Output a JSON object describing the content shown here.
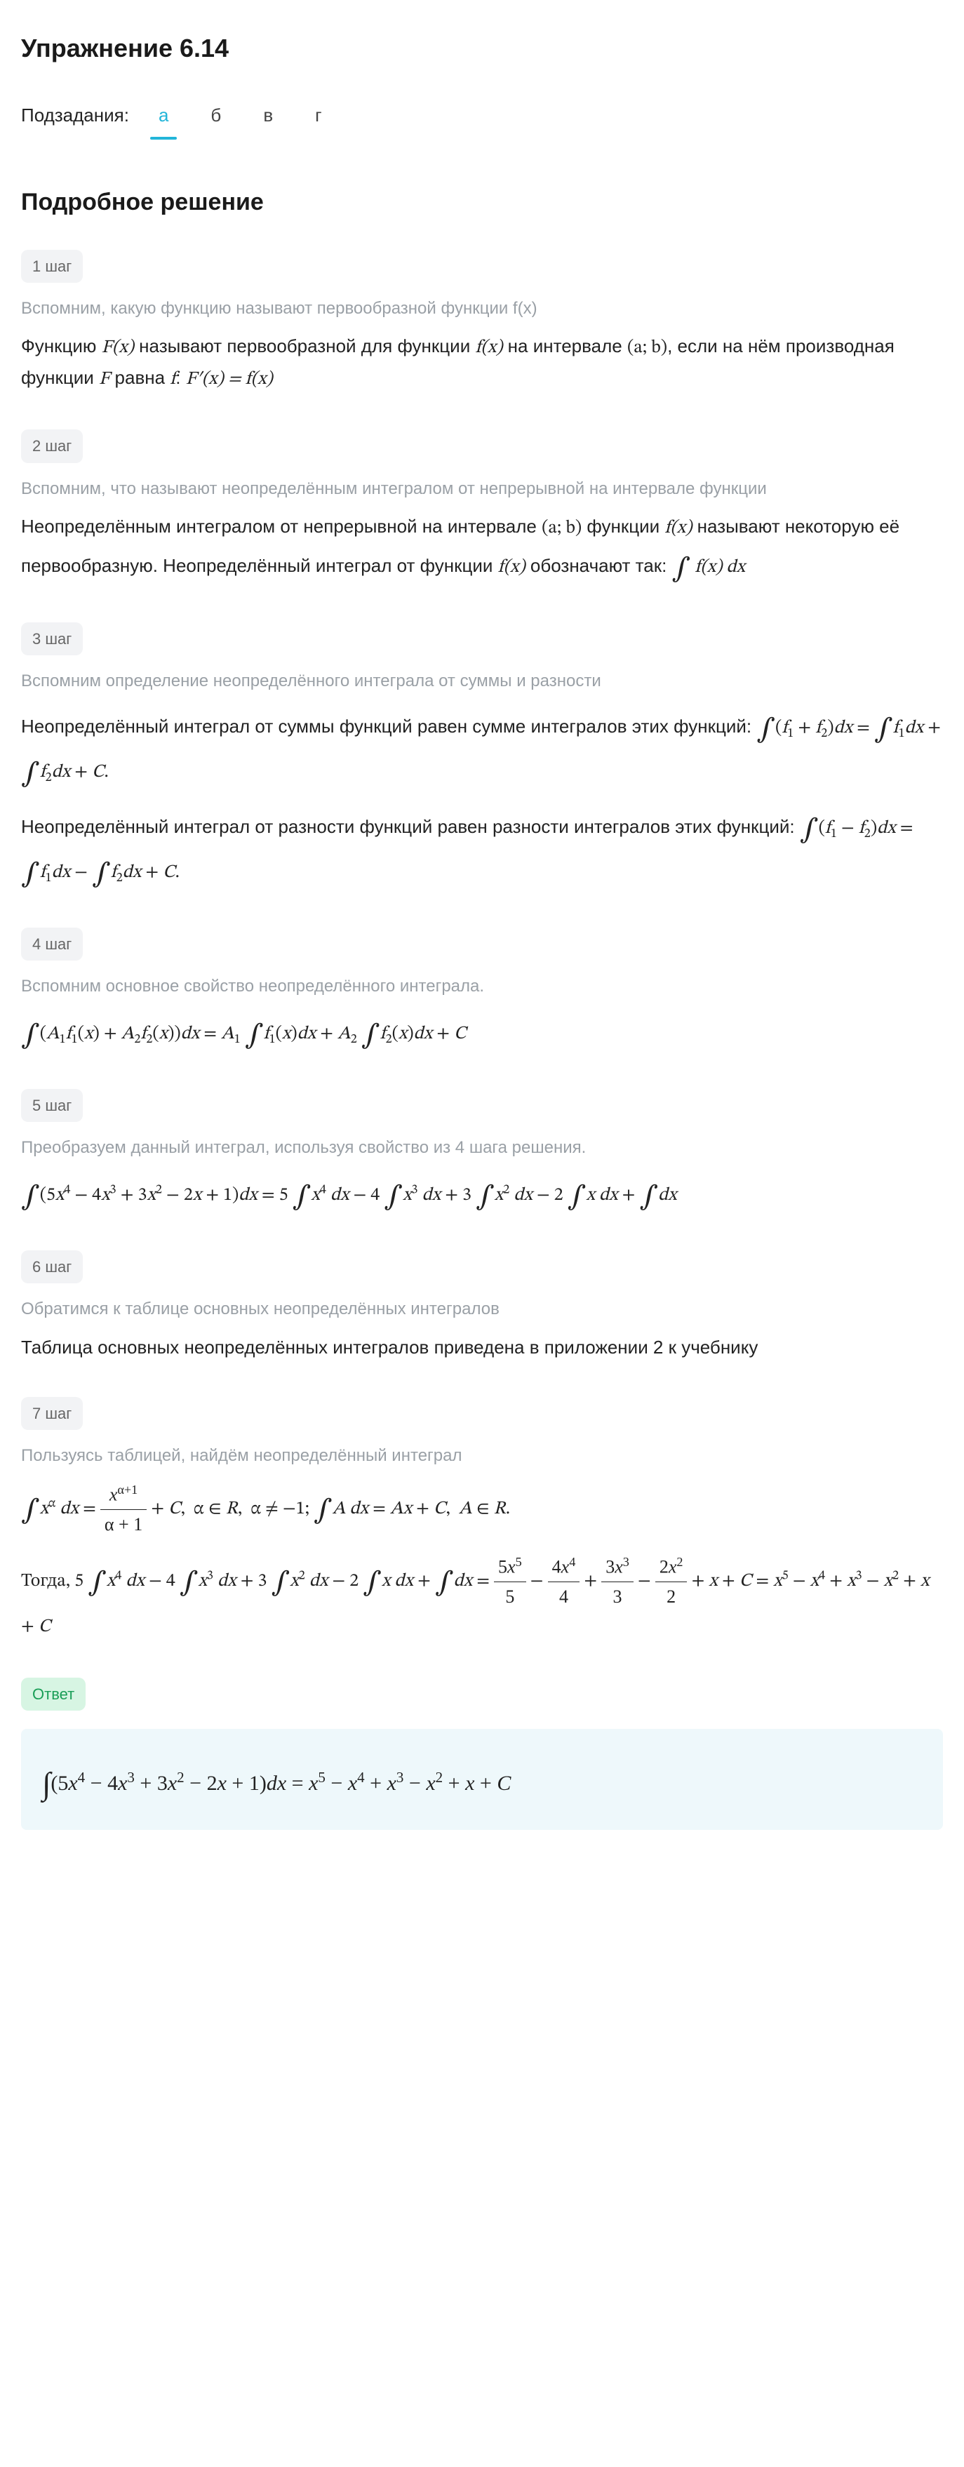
{
  "title": "Упражнение 6.14",
  "subtasks": {
    "label": "Подзадания:",
    "tabs": [
      "а",
      "б",
      "в",
      "г"
    ],
    "active_index": 0,
    "active_color": "#22b5d9"
  },
  "section_heading": "Подробное решение",
  "colors": {
    "badge_bg": "#f2f3f5",
    "badge_fg": "#666666",
    "hint_fg": "#9aa0a6",
    "text": "#222222",
    "answer_badge_bg": "#d7f5e3",
    "answer_badge_fg": "#1a9e57",
    "answer_box_bg": "#eef8fb"
  },
  "steps": [
    {
      "badge": "1 шаг",
      "hint": "Вспомним, какую функцию называют первообразной функции f(x)",
      "body_html": "Функцию <span class='math ital'>F(x)</span> называют первообразной для функции <span class='math ital'>f(x)</span> на интервале <span class='math'>(a; b)</span>, если на нём производная функции <span class='math ital'>F</span> равна <span class='math ital'>f</span>: <span class='math ital'>F′(x) = f(x)</span>"
    },
    {
      "badge": "2 шаг",
      "hint": "Вспомним, что называют неопределённым интегралом от непрерывной на интервале функции",
      "body_html": "Неопределённым интегралом от непрерывной на интервале <span class='math'>(a; b)</span> функции <span class='math ital'>f(x)</span> называют некоторую её первообразную. Неопределённый интеграл от функции <span class='math ital'>f(x)</span> обозначают так: <span class='math'><span class='int'>∫</span> <span class='ital'>f(x)&nbsp;dx</span></span>"
    },
    {
      "badge": "3 шаг",
      "hint": "Вспомним определение неопределённого интеграла от суммы и разности",
      "body_html": "<div class='para'>Неопределённый интеграл от суммы функций равен сумме интегралов этих функций: <span class='math'><span class='int'>∫</span>(<span class='ital'>f</span><sub>1</sub> + <span class='ital'>f</span><sub>2</sub>)<span class='ital'>dx</span> = <span class='int'>∫</span><span class='ital'>f</span><sub>1</sub><span class='ital'>dx</span> + <span class='int'>∫</span><span class='ital'>f</span><sub>2</sub><span class='ital'>dx</span> + <span class='ital'>C</span>.</span></div><div class='para'>Неопределённый интеграл от разности функций равен разности интегралов этих функций: <span class='math'><span class='int'>∫</span>(<span class='ital'>f</span><sub>1</sub> − <span class='ital'>f</span><sub>2</sub>)<span class='ital'>dx</span> = <span class='int'>∫</span><span class='ital'>f</span><sub>1</sub><span class='ital'>dx</span> − <span class='int'>∫</span><span class='ital'>f</span><sub>2</sub><span class='ital'>dx</span> + <span class='ital'>C</span>.</span></div>"
    },
    {
      "badge": "4 шаг",
      "hint": "Вспомним основное свойство неопределённого интеграла.",
      "body_html": "<span class='math'><span class='int'>∫</span>(<span class='ital'>A</span><sub>1</sub><span class='ital'>f</span><sub>1</sub>(<span class='ital'>x</span>) + <span class='ital'>A</span><sub>2</sub><span class='ital'>f</span><sub>2</sub>(<span class='ital'>x</span>))<span class='ital'>dx</span> = <span class='ital'>A</span><sub>1</sub> <span class='int'>∫</span><span class='ital'>f</span><sub>1</sub>(<span class='ital'>x</span>)<span class='ital'>dx</span> + <span class='ital'>A</span><sub>2</sub> <span class='int'>∫</span><span class='ital'>f</span><sub>2</sub>(<span class='ital'>x</span>)<span class='ital'>dx</span> + <span class='ital'>C</span></span>"
    },
    {
      "badge": "5 шаг",
      "hint": "Преобразуем данный интеграл, используя свойство из 4 шага решения.",
      "body_html": "<span class='math'><span class='int'>∫</span>(5<span class='ital'>x</span><sup>4</sup> − 4<span class='ital'>x</span><sup>3</sup> + 3<span class='ital'>x</span><sup>2</sup> − 2<span class='ital'>x</span> + 1)<span class='ital'>dx</span> = 5 <span class='int'>∫</span><span class='ital'>x</span><sup>4</sup>&nbsp;<span class='ital'>dx</span> − 4 <span class='int'>∫</span><span class='ital'>x</span><sup>3</sup>&nbsp;<span class='ital'>dx</span> + 3 <span class='int'>∫</span><span class='ital'>x</span><sup>2</sup>&nbsp;<span class='ital'>dx</span> − 2 <span class='int'>∫</span><span class='ital'>x&nbsp;dx</span> + <span class='int'>∫</span><span class='ital'>dx</span></span>"
    },
    {
      "badge": "6 шаг",
      "hint": "Обратимся к таблице основных неопределённых интегралов",
      "body_html": "Таблица основных неопределённых интегралов приведена в приложении 2 к учебнику"
    },
    {
      "badge": "7 шаг",
      "hint": "Пользуясь таблицей, найдём неопределённый интеграл",
      "body_html": "<div class='para'><span class='math'><span class='int'>∫</span><span class='ital'>x</span><sup>α</sup>&nbsp;<span class='ital'>dx</span> = <span class='frac'><span class='num'><span class='ital'>x</span><sup>α+1</sup></span><span class='den'>α + 1</span></span> + <span class='ital'>C</span>,&nbsp; α ∈ <span class='ital'>R</span>,&nbsp; α ≠ −1; <span class='int'>∫</span><span class='ital'>A&nbsp;dx</span> = <span class='ital'>Ax</span> + <span class='ital'>C</span>,&nbsp; <span class='ital'>A</span> ∈ <span class='ital'>R</span>.</span></div><div class='para'><span class='math'>Тогда, 5 <span class='int'>∫</span><span class='ital'>x</span><sup>4</sup>&nbsp;<span class='ital'>dx</span> − 4 <span class='int'>∫</span><span class='ital'>x</span><sup>3</sup>&nbsp;<span class='ital'>dx</span> + 3 <span class='int'>∫</span><span class='ital'>x</span><sup>2</sup>&nbsp;<span class='ital'>dx</span> − 2 <span class='int'>∫</span><span class='ital'>x&nbsp;dx</span> + <span class='int'>∫</span><span class='ital'>dx</span> = <span class='frac'><span class='num'>5<span class='ital'>x</span><sup>5</sup></span><span class='den'>5</span></span> − <span class='frac'><span class='num'>4<span class='ital'>x</span><sup>4</sup></span><span class='den'>4</span></span> + <span class='frac'><span class='num'>3<span class='ital'>x</span><sup>3</sup></span><span class='den'>3</span></span> − <span class='frac'><span class='num'>2<span class='ital'>x</span><sup>2</sup></span><span class='den'>2</span></span> + <span class='ital'>x</span> + <span class='ital'>C</span> = <span class='ital'>x</span><sup>5</sup> − <span class='ital'>x</span><sup>4</sup> + <span class='ital'>x</span><sup>3</sup> − <span class='ital'>x</span><sup>2</sup> + <span class='ital'>x</span> + <span class='ital'>C</span></span></div>"
    }
  ],
  "answer": {
    "badge": "Ответ",
    "html": "<span class='int'>∫</span>(5<span class='ital'>x</span><sup>4</sup> − 4<span class='ital'>x</span><sup>3</sup> + 3<span class='ital'>x</span><sup>2</sup> − 2<span class='ital'>x</span> + 1)<span class='ital'>dx</span> = <span class='ital'>x</span><sup>5</sup> − <span class='ital'>x</span><sup>4</sup> + <span class='ital'>x</span><sup>3</sup> − <span class='ital'>x</span><sup>2</sup> + <span class='ital'>x</span> + <span class='ital'>C</span>"
  }
}
